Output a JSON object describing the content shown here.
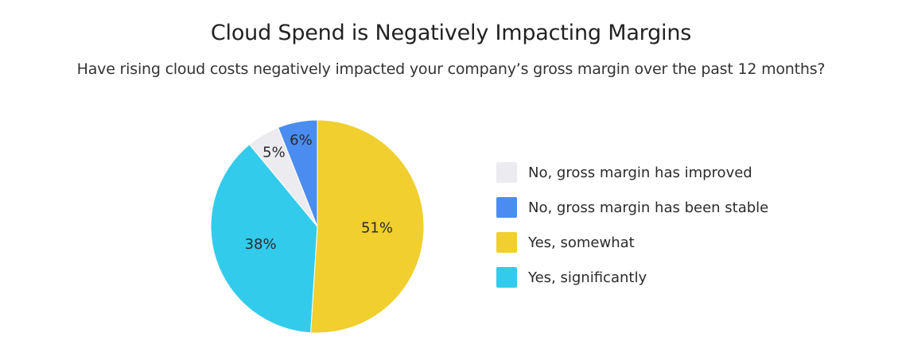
{
  "chart_data": {
    "type": "pie",
    "title": "Cloud Spend is Negatively Impacting Margins",
    "subtitle": "Have rising cloud costs negatively impacted your company’s gross margin over the past 12 months?",
    "slices": [
      {
        "label": "Yes, somewhat",
        "value": 51,
        "display": "51%",
        "color": "#f0cf2e"
      },
      {
        "label": "Yes, significantly",
        "value": 38,
        "display": "38%",
        "color": "#33cbec"
      },
      {
        "label": "No, gross margin has improved",
        "value": 5,
        "display": "5%",
        "color": "#ececf0"
      },
      {
        "label": "No, gross margin has been stable",
        "value": 6,
        "display": "6%",
        "color": "#4b8cf0"
      }
    ],
    "legend": [
      {
        "label": "No, gross margin has improved",
        "color": "#ececf0"
      },
      {
        "label": "No, gross margin has been stable",
        "color": "#4b8cf0"
      },
      {
        "label": "Yes, somewhat",
        "color": "#f0cf2e"
      },
      {
        "label": "Yes, significantly",
        "color": "#33cbec"
      }
    ]
  }
}
